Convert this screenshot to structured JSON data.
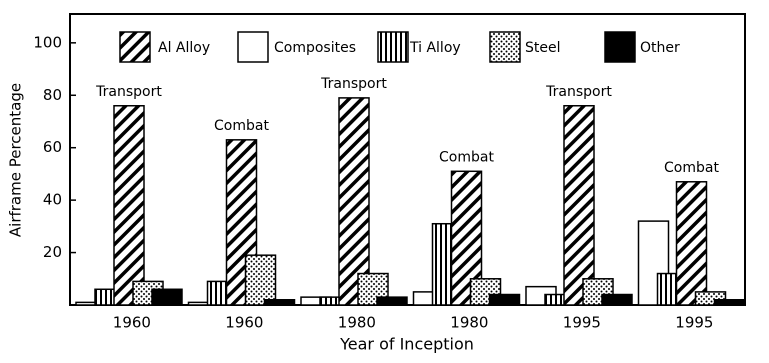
{
  "chart_data": {
    "type": "bar",
    "y_label": "Airframe Percentage",
    "x_label": "Year of Inception",
    "categories": [
      "1960",
      "1960",
      "1980",
      "1980",
      "1995",
      "1995"
    ],
    "annotations": [
      "Transport",
      "Combat",
      "Transport",
      "Combat",
      "Transport",
      "Combat"
    ],
    "series": [
      {
        "name": "Al Alloy",
        "color": "#000000",
        "pattern": "diagonal",
        "values": [
          76,
          63,
          79,
          51,
          76,
          47
        ]
      },
      {
        "name": "Composites",
        "color": "#000000",
        "pattern": "empty",
        "values": [
          1,
          1,
          3,
          5,
          7,
          32
        ]
      },
      {
        "name": "Ti  Alloy",
        "color": "#000000",
        "pattern": "vertical",
        "values": [
          6,
          9,
          3,
          31,
          4,
          12
        ]
      },
      {
        "name": "Steel",
        "color": "#000000",
        "pattern": "dots",
        "values": [
          9,
          19,
          12,
          10,
          10,
          5
        ]
      },
      {
        "name": "Other",
        "color": "#000000",
        "pattern": "solid",
        "values": [
          6,
          2,
          3,
          4,
          4,
          2
        ]
      }
    ],
    "ylim": [
      0,
      111
    ],
    "yticks": [
      20,
      40,
      60,
      80,
      100
    ],
    "grid": false,
    "legend": "top"
  }
}
